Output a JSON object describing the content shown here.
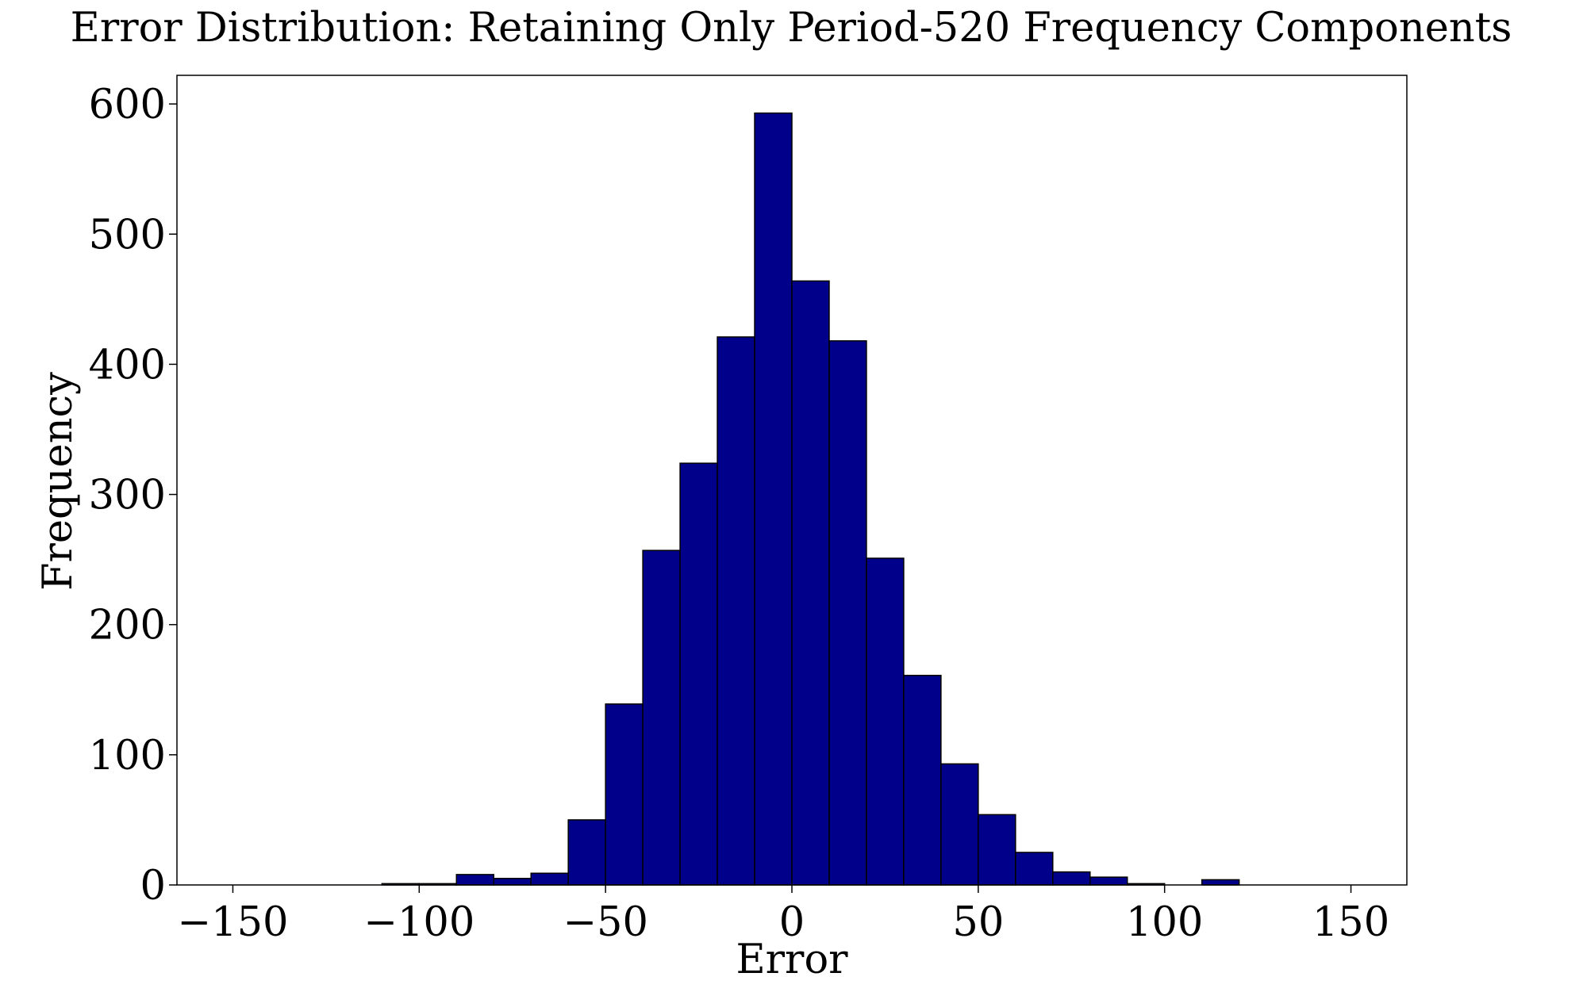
{
  "chart_data": {
    "type": "bar",
    "title": "Error Distribution: Retaining Only Period-520 Frequency Components",
    "xlabel": "Error",
    "ylabel": "Frequency",
    "xlim": [
      -165,
      165
    ],
    "ylim": [
      0,
      622
    ],
    "grid": false,
    "legend": "none",
    "bar_color": "#00008b",
    "edge_color": "#000000",
    "x_ticks": [
      -150,
      -100,
      -50,
      0,
      50,
      100,
      150
    ],
    "x_tick_labels": [
      "−150",
      "−100",
      "−50",
      "0",
      "50",
      "100",
      "150"
    ],
    "y_ticks": [
      0,
      100,
      200,
      300,
      400,
      500,
      600
    ],
    "y_tick_labels": [
      "0",
      "100",
      "200",
      "300",
      "400",
      "500",
      "600"
    ],
    "bins": [
      {
        "start": -110,
        "end": -100,
        "value": 1
      },
      {
        "start": -100,
        "end": -90,
        "value": 1
      },
      {
        "start": -90,
        "end": -80,
        "value": 8
      },
      {
        "start": -80,
        "end": -70,
        "value": 5
      },
      {
        "start": -70,
        "end": -60,
        "value": 9
      },
      {
        "start": -60,
        "end": -50,
        "value": 50
      },
      {
        "start": -50,
        "end": -40,
        "value": 139
      },
      {
        "start": -40,
        "end": -30,
        "value": 257
      },
      {
        "start": -30,
        "end": -20,
        "value": 324
      },
      {
        "start": -20,
        "end": -10,
        "value": 421
      },
      {
        "start": -10,
        "end": 0,
        "value": 593
      },
      {
        "start": 0,
        "end": 10,
        "value": 464
      },
      {
        "start": 10,
        "end": 20,
        "value": 418
      },
      {
        "start": 20,
        "end": 30,
        "value": 251
      },
      {
        "start": 30,
        "end": 40,
        "value": 161
      },
      {
        "start": 40,
        "end": 50,
        "value": 93
      },
      {
        "start": 50,
        "end": 60,
        "value": 54
      },
      {
        "start": 60,
        "end": 70,
        "value": 25
      },
      {
        "start": 70,
        "end": 80,
        "value": 10
      },
      {
        "start": 80,
        "end": 90,
        "value": 6
      },
      {
        "start": 90,
        "end": 100,
        "value": 1
      },
      {
        "start": 100,
        "end": 110,
        "value": 0
      },
      {
        "start": 110,
        "end": 120,
        "value": 4
      }
    ]
  }
}
